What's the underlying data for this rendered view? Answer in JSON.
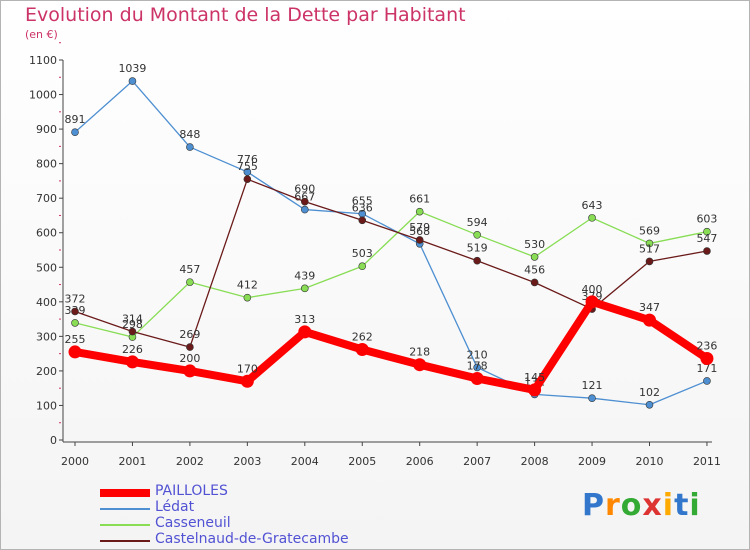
{
  "chart_data": {
    "type": "line",
    "title": "Evolution du Montant de la Dette par Habitant",
    "subtitle": "(en €)",
    "x": [
      "2000",
      "2001",
      "2002",
      "2003",
      "2004",
      "2005",
      "2006",
      "2007",
      "2008",
      "2009",
      "2010",
      "2011"
    ],
    "yticks": [
      "0",
      "100",
      "200",
      "300",
      "400",
      "500",
      "600",
      "700",
      "800",
      "900",
      "1000",
      "1100"
    ],
    "ylim": [
      0,
      1100
    ],
    "grid": false,
    "legend_position": "bottom-left",
    "series": [
      {
        "name": "PAILLOLES",
        "color": "#ff0000",
        "values": [
          255,
          226,
          200,
          170,
          313,
          262,
          218,
          178,
          145,
          400,
          347,
          236
        ],
        "labels": [
          "255",
          "226",
          "200",
          "170",
          "313",
          "262",
          "218",
          "178",
          "145",
          "400",
          "347",
          "236"
        ]
      },
      {
        "name": "Lédat",
        "color": "#4d8fd1",
        "values": [
          891,
          1039,
          848,
          776,
          667,
          655,
          568,
          210,
          132,
          121,
          102,
          171
        ],
        "labels": [
          "891",
          "1039",
          "848",
          "776",
          "667",
          "655",
          "568",
          "210",
          "132",
          "121",
          "102",
          "171"
        ]
      },
      {
        "name": "Casseneuil",
        "color": "#88dd55",
        "values": [
          339,
          298,
          457,
          412,
          439,
          503,
          661,
          594,
          530,
          643,
          569,
          603
        ],
        "labels": [
          "339",
          "298",
          "457",
          "412",
          "439",
          "503",
          "661",
          "594",
          "530",
          "643",
          "569",
          "603"
        ]
      },
      {
        "name": "Castelnaud-de-Gratecambe",
        "color": "#6b1a1a",
        "values": [
          372,
          314,
          269,
          755,
          690,
          636,
          579,
          519,
          456,
          379,
          517,
          547
        ],
        "labels": [
          "372",
          "314",
          "269",
          "755",
          "690",
          "636",
          "579",
          "519",
          "456",
          "379",
          "517",
          "547"
        ]
      }
    ]
  },
  "brand": {
    "text": "Proxiti",
    "colors": [
      "#3377cc",
      "#ff8800",
      "#33aa33",
      "#dd3333",
      "#ffaa00",
      "#3377cc",
      "#33aa33"
    ]
  }
}
